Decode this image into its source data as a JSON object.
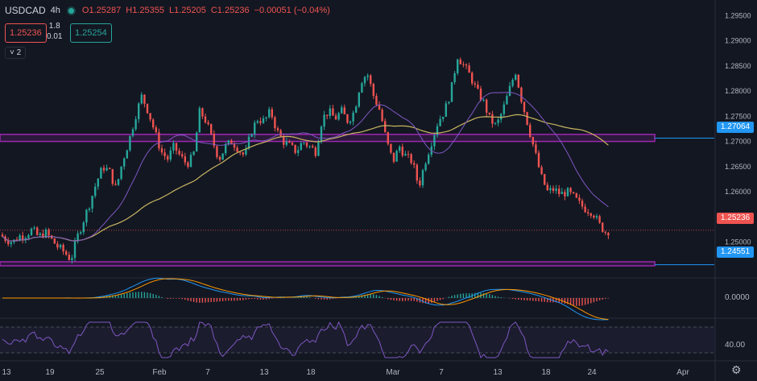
{
  "header": {
    "symbol": "USDCAD",
    "interval": "4h",
    "open": "O1.25287",
    "high": "H1.25355",
    "low": "L1.25205",
    "close": "C1.25236",
    "change": "−0.00051 (−0.04%)"
  },
  "quote": {
    "bid": "1.25236",
    "ask": "1.25254",
    "spread_top": "1.8",
    "spread_bottom": "0.01"
  },
  "indicator_toggle": "˅ 2",
  "price_tags": {
    "upper_line": "1.27064",
    "lower_line": "1.24551",
    "last": "1.25236"
  },
  "oscillator_label": "0.0000",
  "rsi_label": "40.00",
  "colors": {
    "up": "#26a69a",
    "down": "#ef5350",
    "zone": "#9c27b0",
    "line_blue": "#2196f3",
    "ma_long": "#c8b560",
    "ma_short": "#7e57c2"
  },
  "chart_data": {
    "type": "candlestick",
    "symbol": "USDCAD",
    "interval": "4h",
    "y_axis_ticks": [
      "1.29500",
      "1.29000",
      "1.28500",
      "1.28000",
      "1.27500",
      "1.27000",
      "1.26500",
      "1.26000",
      "1.25500",
      "1.25000"
    ],
    "ylim": [
      1.2429,
      1.2968
    ],
    "x_axis_ticks": [
      "13",
      "19",
      "25",
      "Feb",
      "7",
      "13",
      "18",
      "Mar",
      "7",
      "13",
      "18",
      "24",
      "Apr"
    ],
    "close_path": [
      [
        0,
        1.2515
      ],
      [
        8,
        1.2505
      ],
      [
        16,
        1.25
      ],
      [
        24,
        1.2512
      ],
      [
        32,
        1.2515
      ],
      [
        40,
        1.2525
      ],
      [
        48,
        1.251
      ],
      [
        56,
        1.252
      ],
      [
        64,
        1.2505
      ],
      [
        72,
        1.249
      ],
      [
        80,
        1.248
      ],
      [
        88,
        1.2465
      ],
      [
        96,
        1.251
      ],
      [
        104,
        1.2545
      ],
      [
        112,
        1.258
      ],
      [
        120,
        1.262
      ],
      [
        128,
        1.265
      ],
      [
        136,
        1.264
      ],
      [
        144,
        1.2605
      ],
      [
        152,
        1.266
      ],
      [
        160,
        1.27
      ],
      [
        168,
        1.275
      ],
      [
        176,
        1.279
      ],
      [
        184,
        1.276
      ],
      [
        192,
        1.272
      ],
      [
        200,
        1.268
      ],
      [
        208,
        1.2665
      ],
      [
        216,
        1.269
      ],
      [
        224,
        1.267
      ],
      [
        232,
        1.2655
      ],
      [
        240,
        1.267
      ],
      [
        248,
        1.276
      ],
      [
        256,
        1.274
      ],
      [
        264,
        1.27
      ],
      [
        272,
        1.2665
      ],
      [
        280,
        1.269
      ],
      [
        288,
        1.27
      ],
      [
        296,
        1.2685
      ],
      [
        304,
        1.267
      ],
      [
        312,
        1.272
      ],
      [
        320,
        1.2745
      ],
      [
        328,
        1.274
      ],
      [
        336,
        1.276
      ],
      [
        344,
        1.272
      ],
      [
        352,
        1.27
      ],
      [
        360,
        1.269
      ],
      [
        368,
        1.268
      ],
      [
        376,
        1.27
      ],
      [
        384,
        1.269
      ],
      [
        392,
        1.268
      ],
      [
        400,
        1.2745
      ],
      [
        408,
        1.276
      ],
      [
        416,
        1.2745
      ],
      [
        424,
        1.276
      ],
      [
        432,
        1.274
      ],
      [
        440,
        1.276
      ],
      [
        448,
        1.282
      ],
      [
        456,
        1.2835
      ],
      [
        464,
        1.279
      ],
      [
        472,
        1.276
      ],
      [
        480,
        1.27
      ],
      [
        488,
        1.266
      ],
      [
        496,
        1.269
      ],
      [
        504,
        1.267
      ],
      [
        512,
        1.266
      ],
      [
        520,
        1.261
      ],
      [
        528,
        1.266
      ],
      [
        536,
        1.27
      ],
      [
        544,
        1.274
      ],
      [
        552,
        1.276
      ],
      [
        560,
        1.28
      ],
      [
        568,
        1.287
      ],
      [
        576,
        1.285
      ],
      [
        584,
        1.283
      ],
      [
        592,
        1.28
      ],
      [
        600,
        1.278
      ],
      [
        608,
        1.2745
      ],
      [
        616,
        1.273
      ],
      [
        624,
        1.276
      ],
      [
        632,
        1.28
      ],
      [
        640,
        1.284
      ],
      [
        648,
        1.278
      ],
      [
        656,
        1.273
      ],
      [
        664,
        1.268
      ],
      [
        672,
        1.263
      ],
      [
        680,
        1.26
      ],
      [
        688,
        1.2605
      ],
      [
        696,
        1.2595
      ],
      [
        704,
        1.26
      ],
      [
        712,
        1.259
      ],
      [
        720,
        1.2575
      ],
      [
        728,
        1.2565
      ],
      [
        736,
        1.256
      ],
      [
        744,
        1.2535
      ],
      [
        752,
        1.252
      ],
      [
        757,
        1.25236
      ]
    ],
    "zones": [
      {
        "top": 1.2714,
        "bottom": 1.27,
        "line": 1.27064
      },
      {
        "top": 1.2461,
        "bottom": 1.2453,
        "line": 1.24551
      }
    ],
    "last_price": 1.25236
  }
}
